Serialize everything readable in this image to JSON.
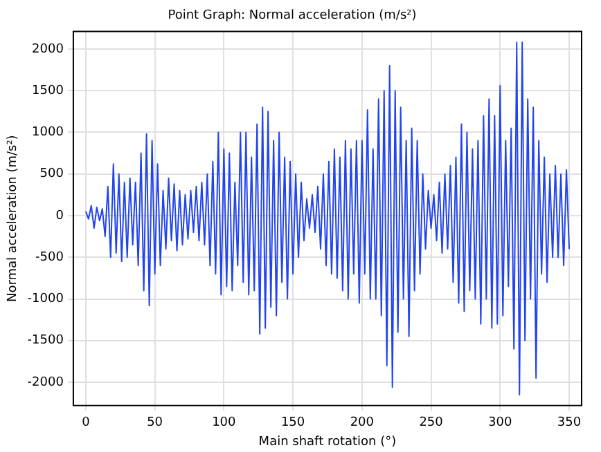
{
  "chart_data": {
    "type": "line",
    "title": "Point Graph: Normal acceleration (m/s²)",
    "xlabel": "Main shaft rotation (°)",
    "ylabel": "Normal acceleration (m/s²)",
    "x": [
      0,
      2,
      4,
      6,
      8,
      10,
      12,
      14,
      16,
      18,
      20,
      22,
      24,
      26,
      28,
      30,
      32,
      34,
      36,
      38,
      40,
      42,
      44,
      46,
      48,
      50,
      52,
      54,
      56,
      58,
      60,
      62,
      64,
      66,
      68,
      70,
      72,
      74,
      76,
      78,
      80,
      82,
      84,
      86,
      88,
      90,
      92,
      94,
      96,
      98,
      100,
      102,
      104,
      106,
      108,
      110,
      112,
      114,
      116,
      118,
      120,
      122,
      124,
      126,
      128,
      130,
      132,
      134,
      136,
      138,
      140,
      142,
      144,
      146,
      148,
      150,
      152,
      154,
      156,
      158,
      160,
      162,
      164,
      166,
      168,
      170,
      172,
      174,
      176,
      178,
      180,
      182,
      184,
      186,
      188,
      190,
      192,
      194,
      196,
      198,
      200,
      202,
      204,
      206,
      208,
      210,
      212,
      214,
      216,
      218,
      220,
      222,
      224,
      226,
      228,
      230,
      232,
      234,
      236,
      238,
      240,
      242,
      244,
      246,
      248,
      250,
      252,
      254,
      256,
      258,
      260,
      262,
      264,
      266,
      268,
      270,
      272,
      274,
      276,
      278,
      280,
      282,
      284,
      286,
      288,
      290,
      292,
      294,
      296,
      298,
      300,
      302,
      304,
      306,
      308,
      310,
      312,
      314,
      316,
      318,
      320,
      322,
      324,
      326,
      328,
      330,
      332,
      334,
      336,
      338,
      340,
      342,
      344,
      346,
      348,
      350
    ],
    "series": [
      {
        "color": "#2244ee",
        "values": [
          50,
          -40,
          120,
          -150,
          100,
          -60,
          80,
          -250,
          350,
          -500,
          620,
          -450,
          500,
          -550,
          400,
          -500,
          450,
          -350,
          400,
          -600,
          750,
          -900,
          980,
          -1080,
          900,
          -700,
          620,
          -600,
          300,
          -400,
          450,
          -300,
          380,
          -420,
          300,
          -350,
          250,
          -280,
          300,
          -200,
          350,
          -300,
          400,
          -350,
          500,
          -600,
          650,
          -700,
          1000,
          -950,
          800,
          -850,
          750,
          -900,
          400,
          -600,
          1000,
          -800,
          1000,
          -950,
          700,
          -900,
          1100,
          -1420,
          1300,
          -1350,
          1250,
          -1100,
          900,
          -1200,
          1000,
          -800,
          700,
          -1000,
          650,
          -700,
          500,
          -500,
          400,
          -300,
          200,
          -150,
          250,
          -200,
          350,
          -400,
          500,
          -600,
          650,
          -700,
          800,
          -750,
          700,
          -900,
          900,
          -1000,
          800,
          -700,
          900,
          -1050,
          900,
          -700,
          1270,
          -1000,
          800,
          -1000,
          1400,
          -1200,
          1500,
          -1800,
          1800,
          -2060,
          1500,
          -1400,
          1300,
          -1000,
          900,
          -1450,
          1050,
          -900,
          900,
          -700,
          500,
          -400,
          300,
          -150,
          250,
          -300,
          400,
          -450,
          500,
          -400,
          600,
          -800,
          700,
          -1050,
          1100,
          -1150,
          1000,
          -900,
          800,
          -1000,
          900,
          -1300,
          1200,
          -1000,
          1400,
          -1350,
          1200,
          -1300,
          1560,
          -1200,
          900,
          -850,
          1050,
          -1600,
          2080,
          -2150,
          2080,
          -1500,
          1400,
          -1000,
          1300,
          -1950,
          900,
          -700,
          700,
          -800,
          500,
          -500,
          600,
          -500,
          500,
          -600,
          550,
          -400
        ]
      }
    ],
    "xlim": [
      -9,
      359
    ],
    "ylim": [
      -2280,
      2210
    ],
    "xticks": [
      0,
      50,
      100,
      150,
      200,
      250,
      300,
      350
    ],
    "yticks": [
      -2000,
      -1500,
      -1000,
      -500,
      0,
      500,
      1000,
      1500,
      2000
    ],
    "grid": true,
    "legend": false,
    "marker": "none",
    "line_style": "solid"
  }
}
